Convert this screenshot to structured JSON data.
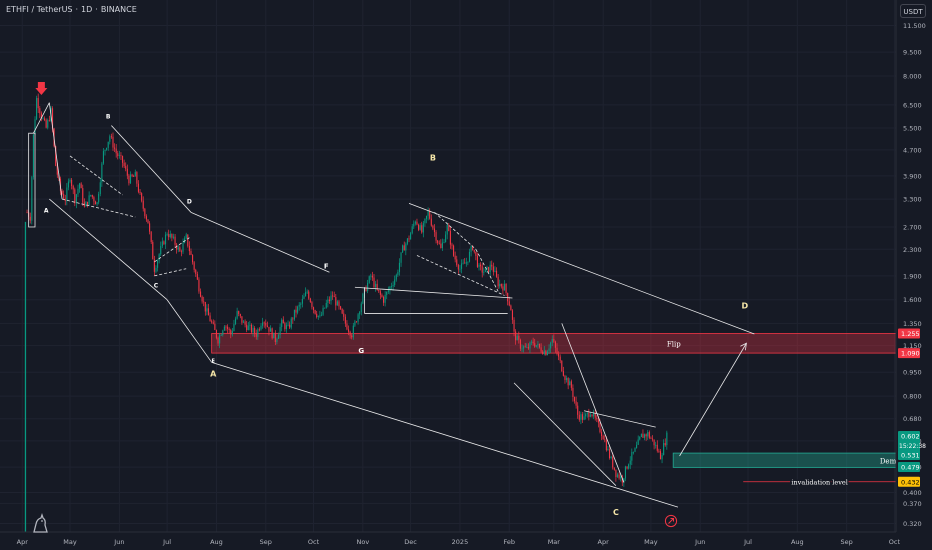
{
  "header": {
    "symbol": "ETHFI / TetherUS",
    "separator": "·",
    "interval": "1D",
    "exchange": "BINANCE",
    "currency": "USDT"
  },
  "chart_data": {
    "type": "candlestick",
    "scale": "log",
    "ylim": [
      0.3,
      13.5
    ],
    "y_ticks": [
      "11.500",
      "9.500",
      "8.000",
      "6.500",
      "5.500",
      "4.700",
      "3.900",
      "3.300",
      "2.700",
      "2.300",
      "1.900",
      "1.600",
      "1.350",
      "1.150",
      "0.950",
      "0.800",
      "0.680",
      "0.580",
      "0.480",
      "0.400",
      "0.370",
      "0.320"
    ],
    "x_ticks": [
      "Apr",
      "May",
      "Jun",
      "Jul",
      "Aug",
      "Sep",
      "Oct",
      "Nov",
      "Dec",
      "2025",
      "Feb",
      "Mar",
      "Apr",
      "May",
      "Jun",
      "Jul",
      "Aug",
      "Sep",
      "Oct"
    ],
    "x_tick_days": [
      -3,
      27,
      58,
      88,
      119,
      150,
      180,
      211,
      241,
      272,
      303,
      331,
      362,
      392,
      423,
      453,
      484,
      515,
      545
    ],
    "x_range_days": [
      -17,
      546
    ],
    "grid": true,
    "candle_anchors": [
      [
        0,
        3.0
      ],
      [
        2,
        2.9
      ],
      [
        4,
        5.2
      ],
      [
        6,
        6.8
      ],
      [
        9,
        6.0
      ],
      [
        12,
        5.5
      ],
      [
        15,
        6.2
      ],
      [
        18,
        4.2
      ],
      [
        21,
        3.5
      ],
      [
        24,
        3.3
      ],
      [
        27,
        3.9
      ],
      [
        30,
        3.3
      ],
      [
        33,
        3.7
      ],
      [
        36,
        3.1
      ],
      [
        40,
        3.4
      ],
      [
        44,
        3.2
      ],
      [
        48,
        4.6
      ],
      [
        52,
        5.2
      ],
      [
        56,
        4.6
      ],
      [
        60,
        4.3
      ],
      [
        64,
        3.8
      ],
      [
        68,
        3.9
      ],
      [
        72,
        3.2
      ],
      [
        76,
        2.8
      ],
      [
        80,
        2.0
      ],
      [
        84,
        2.3
      ],
      [
        88,
        2.6
      ],
      [
        92,
        2.45
      ],
      [
        96,
        2.25
      ],
      [
        100,
        2.5
      ],
      [
        104,
        2.1
      ],
      [
        108,
        1.75
      ],
      [
        112,
        1.5
      ],
      [
        116,
        1.35
      ],
      [
        120,
        1.2
      ],
      [
        124,
        1.35
      ],
      [
        128,
        1.25
      ],
      [
        132,
        1.45
      ],
      [
        136,
        1.35
      ],
      [
        140,
        1.3
      ],
      [
        144,
        1.25
      ],
      [
        148,
        1.4
      ],
      [
        152,
        1.3
      ],
      [
        156,
        1.2
      ],
      [
        160,
        1.35
      ],
      [
        164,
        1.3
      ],
      [
        168,
        1.45
      ],
      [
        172,
        1.55
      ],
      [
        176,
        1.7
      ],
      [
        180,
        1.5
      ],
      [
        184,
        1.4
      ],
      [
        188,
        1.55
      ],
      [
        192,
        1.65
      ],
      [
        196,
        1.5
      ],
      [
        200,
        1.35
      ],
      [
        204,
        1.25
      ],
      [
        208,
        1.45
      ],
      [
        212,
        1.7
      ],
      [
        216,
        1.9
      ],
      [
        220,
        1.7
      ],
      [
        224,
        1.6
      ],
      [
        228,
        1.75
      ],
      [
        232,
        1.9
      ],
      [
        236,
        2.3
      ],
      [
        240,
        2.5
      ],
      [
        244,
        2.85
      ],
      [
        248,
        2.6
      ],
      [
        252,
        3.0
      ],
      [
        256,
        2.6
      ],
      [
        260,
        2.3
      ],
      [
        264,
        2.7
      ],
      [
        268,
        2.2
      ],
      [
        272,
        2.0
      ],
      [
        276,
        2.1
      ],
      [
        280,
        2.35
      ],
      [
        284,
        2.0
      ],
      [
        288,
        1.95
      ],
      [
        292,
        2.05
      ],
      [
        296,
        1.8
      ],
      [
        300,
        1.75
      ],
      [
        304,
        1.5
      ],
      [
        306,
        1.25
      ],
      [
        310,
        1.15
      ],
      [
        314,
        1.12
      ],
      [
        318,
        1.18
      ],
      [
        322,
        1.13
      ],
      [
        326,
        1.1
      ],
      [
        330,
        1.2
      ],
      [
        334,
        1.05
      ],
      [
        338,
        0.92
      ],
      [
        342,
        0.85
      ],
      [
        346,
        0.7
      ],
      [
        350,
        0.68
      ],
      [
        354,
        0.72
      ],
      [
        358,
        0.66
      ],
      [
        362,
        0.6
      ],
      [
        366,
        0.52
      ],
      [
        370,
        0.46
      ],
      [
        374,
        0.44
      ],
      [
        378,
        0.5
      ],
      [
        382,
        0.54
      ],
      [
        386,
        0.6
      ],
      [
        390,
        0.61
      ],
      [
        394,
        0.57
      ],
      [
        398,
        0.52
      ],
      [
        402,
        0.6
      ]
    ],
    "zones": [
      {
        "label": "Flip",
        "low": 1.09,
        "high": 1.255,
        "start_day": 116,
        "end_day": 546,
        "color": "#f23645"
      },
      {
        "label": "Demand",
        "low": 0.479,
        "high": 0.531,
        "start_day": 406,
        "end_day": 546,
        "color": "#22ab94"
      }
    ],
    "price_labels": [
      {
        "text": "0.602",
        "value": 0.602,
        "color": "#089981",
        "sub": "15:22:38"
      },
      {
        "text": "1.255",
        "value": 1.255,
        "color": "#f23645"
      },
      {
        "text": "1.090",
        "value": 1.09,
        "color": "#f23645"
      },
      {
        "text": "0.531",
        "value": 0.531,
        "color": "#089981"
      },
      {
        "text": "0.479",
        "value": 0.479,
        "color": "#089981"
      },
      {
        "text": "0.432",
        "value": 0.432,
        "color": "#ffc107"
      }
    ],
    "invalidation": {
      "label": "invalidation level",
      "value": 0.432,
      "start_day": 450,
      "end_day": 546
    },
    "wave_labels": [
      {
        "text": "A",
        "day": 12,
        "value": 3.0,
        "color": "#ffffff",
        "size": 6
      },
      {
        "text": "B",
        "day": 51,
        "value": 5.9,
        "color": "#ffffff",
        "size": 6
      },
      {
        "text": "C",
        "day": 81,
        "value": 1.75,
        "color": "#ffffff",
        "size": 6
      },
      {
        "text": "D",
        "day": 102,
        "value": 3.2,
        "color": "#ffffff",
        "size": 6
      },
      {
        "text": "E",
        "day": 117,
        "value": 1.02,
        "color": "#ffffff",
        "size": 5
      },
      {
        "text": "F",
        "day": 188,
        "value": 2.0,
        "color": "#ffffff",
        "size": 7
      },
      {
        "text": "G",
        "day": 210,
        "value": 1.09,
        "color": "#ffffff",
        "size": 7
      },
      {
        "text": "A",
        "day": 117,
        "value": 0.92,
        "color": "#f5e6a8",
        "size": 8
      },
      {
        "text": "B",
        "day": 255,
        "value": 4.35,
        "color": "#f5e6a8",
        "size": 8
      },
      {
        "text": "C",
        "day": 370,
        "value": 0.34,
        "color": "#f5e6a8",
        "size": 8
      },
      {
        "text": "D",
        "day": 451,
        "value": 1.5,
        "color": "#f5e6a8",
        "size": 8
      }
    ]
  }
}
